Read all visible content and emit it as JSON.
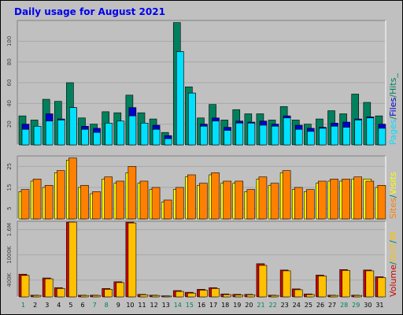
{
  "title": "Daily usage for August 2021",
  "colors": {
    "hits": "#00805c",
    "files": "#0000cc",
    "pages": "#00e0ff",
    "visits": "#ffff00",
    "sites": "#ff8000",
    "kin": "#ff8000",
    "kout": "#ffc000",
    "volume": "#cc0000",
    "background": "#c0c0c0",
    "title": "#0000ee"
  },
  "chart_data": {
    "type": "bar",
    "days": [
      "1",
      "2",
      "3",
      "4",
      "5",
      "6",
      "7",
      "8",
      "9",
      "10",
      "11",
      "12",
      "13",
      "14",
      "15",
      "16",
      "17",
      "18",
      "19",
      "20",
      "21",
      "22",
      "23",
      "24",
      "25",
      "26",
      "27",
      "28",
      "29",
      "30",
      "31"
    ],
    "weekend_days": [
      "1",
      "7",
      "8",
      "14",
      "15",
      "21",
      "22",
      "28",
      "29"
    ],
    "panels": [
      {
        "name": "hits-files-pages",
        "ylim": [
          0,
          120
        ],
        "yticks": [
          {
            "value": 20,
            "label": "20"
          },
          {
            "value": 40,
            "label": "40"
          },
          {
            "value": 60,
            "label": "60"
          },
          {
            "value": 80,
            "label": "80"
          },
          {
            "value": 100,
            "label": "100"
          }
        ],
        "legend": [
          {
            "text": "Pages",
            "color": "pages"
          },
          {
            "text": "/",
            "color": "hits"
          },
          {
            "text": "Files",
            "color": "files"
          },
          {
            "text": "/",
            "color": "hits"
          },
          {
            "text": "Hits",
            "color": "hits"
          },
          {
            "text": "_",
            "color": "hits"
          }
        ],
        "series": [
          {
            "name": "Hits",
            "color": "hits",
            "values": [
              28,
              24,
              44,
              42,
              60,
              26,
              20,
              32,
              31,
              48,
              31,
              25,
              12,
              118,
              56,
              26,
              39,
              24,
              34,
              30,
              30,
              24,
              37,
              24,
              20,
              25,
              33,
              30,
              49,
              41,
              28
            ]
          },
          {
            "name": "Files",
            "color": "files",
            "values": [
              20,
              18,
              30,
              25,
              36,
              18,
              16,
              21,
              22,
              36,
              21,
              19,
              9,
              90,
              50,
              20,
              26,
              17,
              23,
              22,
              23,
              20,
              28,
              19,
              16,
              17,
              21,
              22,
              25,
              27,
              20
            ]
          },
          {
            "name": "Pages",
            "color": "pages",
            "values": [
              15,
              18,
              23,
              24,
              36,
              15,
              12,
              21,
              23,
              28,
              21,
              15,
              6,
              90,
              50,
              18,
              23,
              14,
              21,
              21,
              19,
              18,
              26,
              15,
              13,
              16,
              18,
              17,
              24,
              26,
              16
            ]
          }
        ]
      },
      {
        "name": "visits-sites",
        "ylim": [
          0,
          30
        ],
        "yticks": [
          {
            "value": 5,
            "label": "5"
          },
          {
            "value": 15,
            "label": "15"
          },
          {
            "value": 25,
            "label": "25"
          }
        ],
        "legend": [
          {
            "text": "Sites",
            "color": "sites"
          },
          {
            "text": "/",
            "color": "hits"
          },
          {
            "text": "Visits",
            "color": "visits"
          }
        ],
        "series": [
          {
            "name": "Visits",
            "color": "visits",
            "values": [
              13,
              18,
              15,
              22,
              28,
              15,
              12,
              19,
              17,
              22,
              17,
              14,
              8,
              14,
              20,
              16,
              21,
              17,
              17,
              13,
              19,
              16,
              22,
              14,
              13,
              17,
              18,
              18,
              19,
              19,
              15
            ]
          },
          {
            "name": "Sites",
            "color": "sites",
            "values": [
              14,
              19,
              16,
              23,
              29,
              16,
              13,
              20,
              18,
              25,
              18,
              15,
              9,
              15,
              21,
              17,
              22,
              18,
              18,
              14,
              20,
              17,
              23,
              15,
              14,
              18,
              19,
              19,
              20,
              18,
              16
            ]
          }
        ]
      },
      {
        "name": "volume",
        "ylim": [
          0,
          1800
        ],
        "ytick_unit": "K",
        "yticks": [
          {
            "value": 400,
            "label": "400K"
          },
          {
            "value": 1000,
            "label": "1000K"
          },
          {
            "value": 1600,
            "label": "1.6M"
          }
        ],
        "legend": [
          {
            "text": "Volume",
            "color": "volume"
          },
          {
            "text": "/",
            "color": "hits"
          },
          {
            "text": "OUT",
            "color": "kout"
          },
          {
            "text": "/",
            "color": "hits"
          },
          {
            "text": "IN",
            "color": "kout"
          }
        ],
        "series": [
          {
            "name": "Volume",
            "color": "volume",
            "values": [
              540,
              40,
              450,
              220,
              1780,
              40,
              40,
              200,
              360,
              1780,
              60,
              40,
              25,
              150,
              110,
              180,
              220,
              70,
              60,
              60,
              790,
              40,
              640,
              190,
              70,
              520,
              40,
              650,
              40,
              640,
              480
            ]
          },
          {
            "name": "OUT",
            "color": "kin",
            "values": [
              510,
              35,
              430,
              200,
              1780,
              35,
              35,
              180,
              340,
              1760,
              50,
              35,
              20,
              130,
              90,
              160,
              200,
              55,
              45,
              50,
              750,
              35,
              620,
              170,
              55,
              500,
              35,
              630,
              35,
              620,
              460
            ]
          }
        ]
      }
    ]
  }
}
